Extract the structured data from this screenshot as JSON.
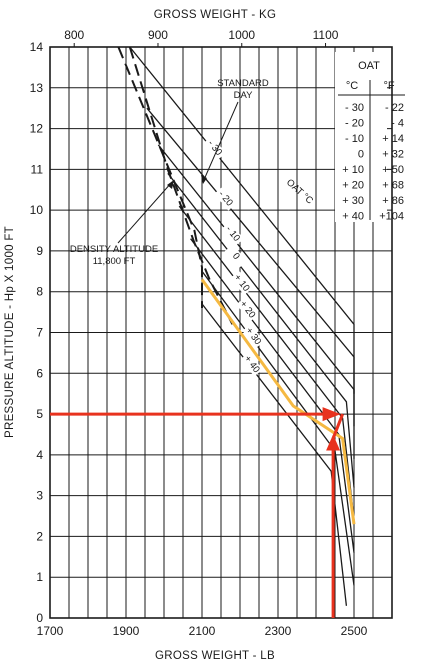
{
  "chart_data": {
    "type": "line",
    "title": "",
    "xlabel": "GROSS WEIGHT - LB",
    "x2label": "GROSS WEIGHT - KG",
    "ylabel": "PRESSURE ALTITUDE - Hp X 1000 FT",
    "xlim": [
      1700,
      2600
    ],
    "ylim": [
      0,
      14
    ],
    "x_ticks": [
      "1700",
      "1900",
      "2100",
      "2300",
      "2500"
    ],
    "x_tick_values": [
      1700,
      1900,
      2100,
      2300,
      2500
    ],
    "x2_ticks": [
      "800",
      "900",
      "1000",
      "1100"
    ],
    "x2_tick_values": [
      800,
      900,
      1000,
      1100
    ],
    "y_ticks": [
      "0",
      "1",
      "2",
      "3",
      "4",
      "5",
      "6",
      "7",
      "8",
      "9",
      "10",
      "11",
      "12",
      "13",
      "14"
    ],
    "grid": true,
    "curves_label": "OAT °C",
    "series": [
      {
        "name": "-30",
        "label": "- 30",
        "points": [
          [
            1910,
            14
          ],
          [
            2500,
            7.2
          ],
          [
            2500,
            5.5
          ]
        ]
      },
      {
        "name": "-20",
        "label": "- 20",
        "points": [
          [
            1955,
            12.5
          ],
          [
            2500,
            6.4
          ],
          [
            2500,
            4.7
          ]
        ]
      },
      {
        "name": "-10",
        "label": "- 10",
        "points": [
          [
            1985,
            11.6
          ],
          [
            2500,
            5.6
          ],
          [
            2500,
            3.9
          ]
        ]
      },
      {
        "name": "0",
        "label": "0",
        "points": [
          [
            2010,
            10.9
          ],
          [
            2480,
            5.3
          ],
          [
            2500,
            3.2
          ]
        ]
      },
      {
        "name": "+10",
        "label": "+ 10",
        "points": [
          [
            2040,
            10.1
          ],
          [
            2470,
            4.9
          ],
          [
            2500,
            2.4
          ]
        ]
      },
      {
        "name": "+20",
        "label": "+ 20",
        "points": [
          [
            2070,
            9.3
          ],
          [
            2460,
            4.5
          ],
          [
            2500,
            1.6
          ]
        ]
      },
      {
        "name": "+30",
        "label": "+ 30",
        "points": [
          [
            2100,
            8.5
          ],
          [
            2450,
            4.1
          ],
          [
            2500,
            0.8
          ]
        ]
      },
      {
        "name": "+40",
        "label": "+ 40",
        "points": [
          [
            2100,
            7.7
          ],
          [
            2440,
            3.6
          ],
          [
            2480,
            0.3
          ]
        ]
      }
    ],
    "standard_day": [
      [
        1910,
        14
      ],
      [
        2010,
        11.0
      ],
      [
        2080,
        9.2
      ],
      [
        2120,
        8.3
      ],
      [
        2180,
        7.2
      ]
    ],
    "density_limit": [
      [
        1880,
        14
      ],
      [
        1960,
        12.2
      ],
      [
        2040,
        10.4
      ],
      [
        2080,
        9.5
      ],
      [
        2100,
        8.6
      ],
      [
        2100,
        7.6
      ]
    ],
    "highlight_curve": [
      [
        2100,
        8.3
      ],
      [
        2340,
        5.2
      ],
      [
        2470,
        4.4
      ],
      [
        2500,
        2.3
      ]
    ],
    "example_path": [
      [
        2445,
        0
      ],
      [
        2445,
        4.4
      ],
      [
        2470,
        5.0
      ],
      [
        1700,
        5.0
      ]
    ],
    "colors": {
      "grid": "#1a1a1a",
      "curve": "#1a1a1a",
      "highlight": "#f5b942",
      "example": "#e8321e",
      "panel_background": "#ffffff"
    },
    "annotations": {
      "standard_day": [
        "STANDARD",
        "DAY"
      ],
      "density_altitude": [
        "DENSITY ALTITUDE",
        "11,800 FT"
      ]
    },
    "oat_table": {
      "title": "OAT",
      "col_c": "°C",
      "col_f": "°F",
      "rows": [
        [
          "- 30",
          "- 22"
        ],
        [
          "- 20",
          "-  4"
        ],
        [
          "- 10",
          "+ 14"
        ],
        [
          "0",
          "+ 32"
        ],
        [
          "+ 10",
          "+ 50"
        ],
        [
          "+ 20",
          "+ 68"
        ],
        [
          "+ 30",
          "+ 86"
        ],
        [
          "+ 40",
          "+104"
        ]
      ]
    }
  }
}
